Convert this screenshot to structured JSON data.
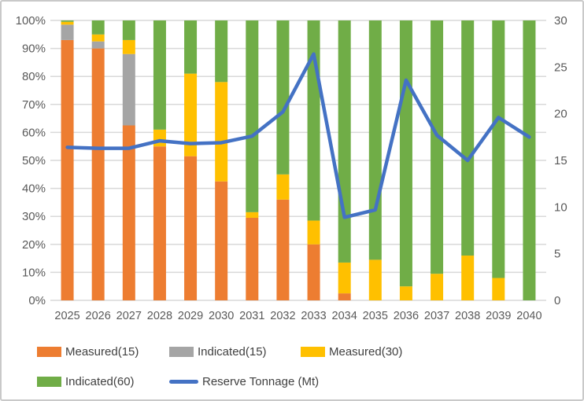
{
  "chart_data": {
    "type": "combo",
    "bar_type": "stacked-100-percent",
    "title": "",
    "grid": true,
    "legend_position": "bottom-left",
    "categories": [
      "2025",
      "2026",
      "2027",
      "2028",
      "2029",
      "2030",
      "2031",
      "2032",
      "2033",
      "2034",
      "2035",
      "2036",
      "2037",
      "2038",
      "2039",
      "2040"
    ],
    "series": [
      {
        "name": "Measured(15)",
        "type": "bar",
        "color": "#ED7D31",
        "values": [
          93,
          90,
          62.5,
          55,
          51.5,
          42.5,
          29.5,
          36,
          20,
          2.5,
          0,
          0,
          0,
          0,
          0,
          0
        ]
      },
      {
        "name": "Indicated(15)",
        "type": "bar",
        "color": "#A5A5A5",
        "values": [
          5.5,
          2.5,
          25.5,
          0,
          0,
          0,
          0,
          0,
          0,
          0,
          0,
          0,
          0,
          0,
          0,
          0
        ]
      },
      {
        "name": "Measured(30)",
        "type": "bar",
        "color": "#FFC000",
        "values": [
          1,
          2.5,
          5,
          6,
          29.5,
          35.5,
          2,
          9,
          8.5,
          11,
          14.5,
          5,
          9.5,
          16,
          8,
          0
        ]
      },
      {
        "name": "Indicated(60)",
        "type": "bar",
        "color": "#70AD47",
        "values": [
          0.5,
          5,
          7,
          39,
          19,
          22,
          68.5,
          55,
          71.5,
          86.5,
          85.5,
          95,
          90.5,
          84,
          92,
          100
        ]
      },
      {
        "name": "Reserve Tonnage (Mt)",
        "type": "line",
        "axis": "right",
        "color": "#4472C4",
        "values": [
          16.4,
          16.3,
          16.3,
          17.1,
          16.8,
          16.9,
          17.6,
          20.2,
          26.4,
          8.9,
          9.7,
          23.6,
          17.7,
          15,
          19.6,
          17.5
        ]
      }
    ],
    "left_axis": {
      "min": 0,
      "max": 100,
      "step": 10,
      "ticks": [
        "0%",
        "10%",
        "20%",
        "30%",
        "40%",
        "50%",
        "60%",
        "70%",
        "80%",
        "90%",
        "100%"
      ]
    },
    "right_axis": {
      "min": 0,
      "max": 30,
      "step": 5,
      "ticks": [
        "0",
        "5",
        "10",
        "15",
        "20",
        "25",
        "30"
      ]
    },
    "colors": {
      "gridline": "#D9D9D9",
      "axis_text": "#595959",
      "legend_text": "#404040",
      "frame_border": "#C9C9C9"
    }
  }
}
